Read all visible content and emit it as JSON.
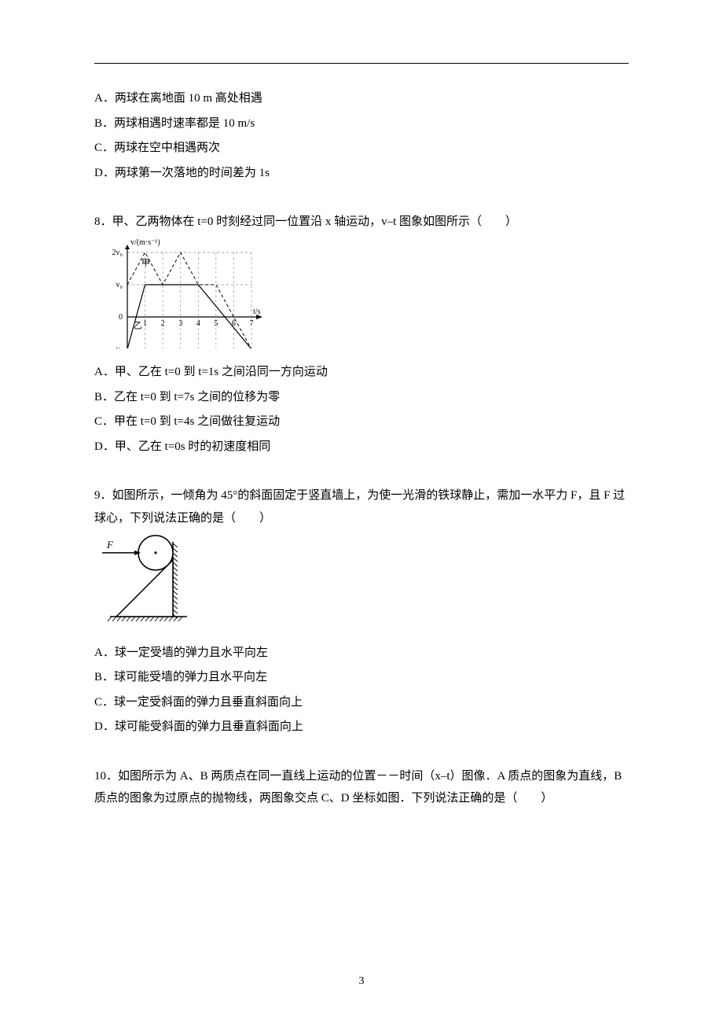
{
  "page_number": "3",
  "q7": {
    "A": "A．两球在离地面 10 m 高处相遇",
    "B": "B．两球相遇时速率都是 10 m/s",
    "C": "C．两球在空中相遇两次",
    "D": "D．两球第一次落地的时间差为 1s"
  },
  "q8": {
    "stem": "8．甲、乙两物体在 t=0 时刻经过同一位置沿 x 轴运动，v–t 图象如图所示（　　）",
    "A": "A．甲、乙在 t=0 到 t=1s 之间沿同一方向运动",
    "B": "B．乙在 t=0 到 t=7s 之间的位移为零",
    "C": "C．甲在 t=0 到 t=4s 之间做往复运动",
    "D": "D．甲、乙在 t=0s 时的初速度相同",
    "chart": {
      "type": "line",
      "xlabel": "t/s",
      "ylabel": "v/(m·s⁻¹)",
      "xlim": [
        0,
        7
      ],
      "ylim": [
        -1,
        2
      ],
      "yticks_labels": [
        "-v₀",
        "0",
        "v₀",
        "2v₀"
      ],
      "yticks_pos": [
        -1,
        0,
        1,
        2
      ],
      "xticks": [
        1,
        2,
        3,
        4,
        5,
        6,
        7
      ],
      "series": [
        {
          "name": "甲",
          "points": [
            [
              0,
              1
            ],
            [
              1,
              2
            ],
            [
              2,
              1
            ],
            [
              3,
              2
            ],
            [
              4,
              1
            ],
            [
              5,
              1
            ],
            [
              7,
              -1
            ]
          ],
          "color": "#000000",
          "dash": "4,3",
          "width": 1
        },
        {
          "name": "乙",
          "points": [
            [
              0,
              -1
            ],
            [
              1,
              1
            ],
            [
              4,
              1
            ],
            [
              7,
              -1
            ]
          ],
          "color": "#000000",
          "dash": "",
          "width": 1.2
        }
      ],
      "label_positions": {
        "甲": [
          0.8,
          1.6
        ],
        "乙": [
          0.35,
          -0.35
        ]
      },
      "axis_color": "#000000",
      "grid_dash": "3,3",
      "grid_color": "#888888",
      "label_fontsize": 10
    }
  },
  "q9": {
    "stem": "9．如图所示，一倾角为 45°的斜面固定于竖直墙上，为使一光滑的铁球静止，需加一水平力 F，且 F 过球心，下列说法正确的是（　　）",
    "A": "A．球一定受墙的弹力且水平向左",
    "B": "B．球可能受墙的弹力且水平向左",
    "C": "C．球一定受斜面的弹力且垂直斜面向上",
    "D": "D．球可能受斜面的弹力且垂直斜面向上",
    "diagram": {
      "type": "diagram",
      "angle_deg": 45,
      "F_label": "F",
      "stroke": "#000000",
      "fill": "#ffffff",
      "hatch_color": "#000000"
    }
  },
  "q10": {
    "stem": "10．如图所示为 A、B 两质点在同一直线上运动的位置－－时间（x–t）图像．A 质点的图象为直线，B 质点的图象为过原点的抛物线，两图象交点 C、D 坐标如图．下列说法正确的是（　　）"
  }
}
